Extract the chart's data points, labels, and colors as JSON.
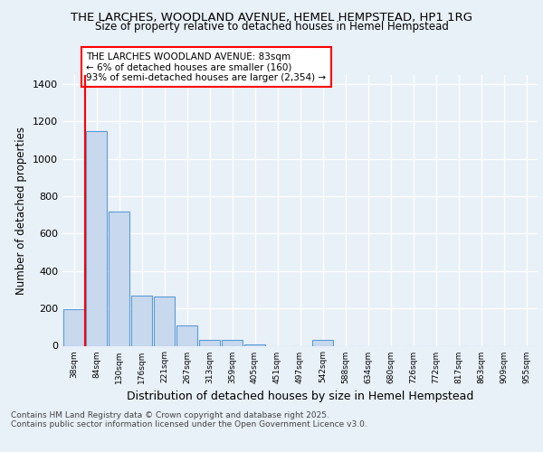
{
  "title": "THE LARCHES, WOODLAND AVENUE, HEMEL HEMPSTEAD, HP1 1RG",
  "subtitle": "Size of property relative to detached houses in Hemel Hempstead",
  "xlabel": "Distribution of detached houses by size in Hemel Hempstead",
  "ylabel": "Number of detached properties",
  "categories": [
    "38sqm",
    "84sqm",
    "130sqm",
    "176sqm",
    "221sqm",
    "267sqm",
    "313sqm",
    "359sqm",
    "405sqm",
    "451sqm",
    "497sqm",
    "542sqm",
    "588sqm",
    "634sqm",
    "680sqm",
    "726sqm",
    "772sqm",
    "817sqm",
    "863sqm",
    "909sqm",
    "955sqm"
  ],
  "values": [
    195,
    1150,
    720,
    270,
    265,
    110,
    30,
    30,
    5,
    0,
    0,
    30,
    0,
    0,
    0,
    0,
    0,
    0,
    0,
    0,
    0
  ],
  "bar_color": "#c8d9ee",
  "bar_edge_color": "#5b9bd5",
  "red_line_index": 1,
  "annotation_text": "THE LARCHES WOODLAND AVENUE: 83sqm\n← 6% of detached houses are smaller (160)\n93% of semi-detached houses are larger (2,354) →",
  "ylim": [
    0,
    1450
  ],
  "yticks": [
    0,
    200,
    400,
    600,
    800,
    1000,
    1200,
    1400
  ],
  "footnote": "Contains HM Land Registry data © Crown copyright and database right 2025.\nContains public sector information licensed under the Open Government Licence v3.0.",
  "background_color": "#e8f0f8",
  "plot_background": "#e8f0f8",
  "grid_color": "#ffffff",
  "title_fontsize": 9.5,
  "subtitle_fontsize": 8.5,
  "annotation_fontsize": 7.5,
  "footnote_fontsize": 6.5,
  "xlabel_fontsize": 9,
  "ylabel_fontsize": 8.5
}
